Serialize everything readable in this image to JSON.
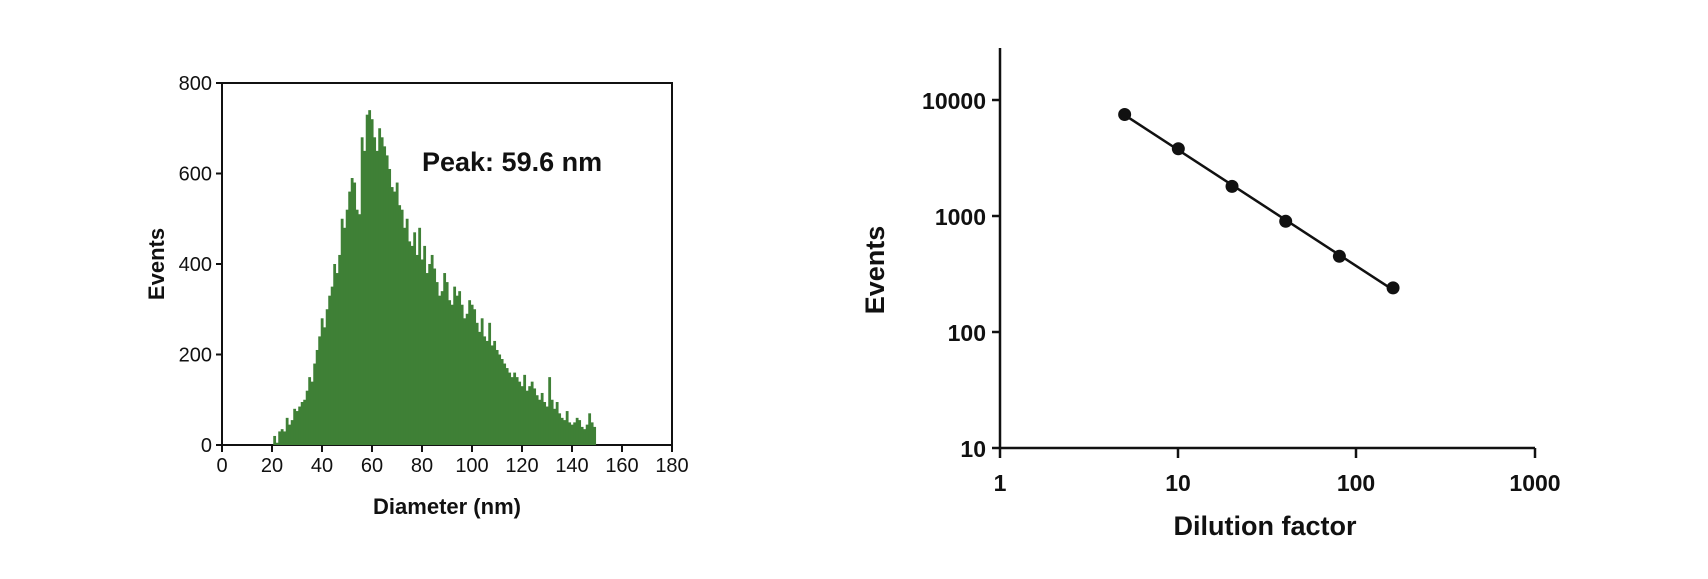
{
  "colors": {
    "bars": "#3f8036",
    "axis": "#111111",
    "points": "#111111"
  },
  "chart_data": [
    {
      "type": "bar",
      "xlabel": "Diameter (nm)",
      "ylabel": "Events",
      "xlim": [
        0,
        180
      ],
      "ylim": [
        0,
        800
      ],
      "xticks": [
        "0",
        "20",
        "40",
        "60",
        "80",
        "100",
        "120",
        "140",
        "160",
        "180"
      ],
      "yticks": [
        "0",
        "200",
        "400",
        "600",
        "800"
      ],
      "bin_width": 1,
      "annotation": "Peak: 59.6 nm",
      "x": [
        21,
        22,
        23,
        24,
        25,
        26,
        27,
        28,
        29,
        30,
        31,
        32,
        33,
        34,
        35,
        36,
        37,
        38,
        39,
        40,
        41,
        42,
        43,
        44,
        45,
        46,
        47,
        48,
        49,
        50,
        51,
        52,
        53,
        54,
        55,
        56,
        57,
        58,
        59,
        60,
        61,
        62,
        63,
        64,
        65,
        66,
        67,
        68,
        69,
        70,
        71,
        72,
        73,
        74,
        75,
        76,
        77,
        78,
        79,
        80,
        81,
        82,
        83,
        84,
        85,
        86,
        87,
        88,
        89,
        90,
        91,
        92,
        93,
        94,
        95,
        96,
        97,
        98,
        99,
        100,
        101,
        102,
        103,
        104,
        105,
        106,
        107,
        108,
        109,
        110,
        111,
        112,
        113,
        114,
        115,
        116,
        117,
        118,
        119,
        120,
        121,
        122,
        123,
        124,
        125,
        126,
        127,
        128,
        129,
        130,
        131,
        132,
        133,
        134,
        135,
        136,
        137,
        138,
        139,
        140,
        141,
        142,
        143,
        144,
        145,
        146,
        147,
        148,
        149
      ],
      "values": [
        20,
        5,
        30,
        35,
        30,
        60,
        45,
        55,
        80,
        75,
        85,
        95,
        100,
        120,
        150,
        140,
        180,
        210,
        240,
        280,
        260,
        300,
        330,
        350,
        400,
        380,
        420,
        500,
        480,
        520,
        560,
        590,
        580,
        520,
        510,
        680,
        650,
        730,
        740,
        720,
        680,
        650,
        700,
        680,
        660,
        640,
        610,
        570,
        560,
        580,
        530,
        520,
        480,
        500,
        450,
        440,
        470,
        420,
        480,
        410,
        440,
        380,
        400,
        420,
        390,
        360,
        330,
        340,
        380,
        360,
        320,
        310,
        350,
        330,
        340,
        310,
        280,
        290,
        320,
        310,
        300,
        270,
        250,
        280,
        240,
        230,
        270,
        220,
        230,
        210,
        200,
        190,
        180,
        170,
        160,
        150,
        160,
        150,
        140,
        130,
        155,
        120,
        130,
        140,
        125,
        110,
        100,
        115,
        95,
        85,
        150,
        100,
        80,
        95,
        70,
        60,
        55,
        75,
        50,
        45,
        50,
        60,
        55,
        40,
        35,
        45,
        70,
        50,
        40
      ]
    },
    {
      "type": "scatter",
      "xlabel": "Dilution factor",
      "ylabel": "Events",
      "xscale": "log",
      "yscale": "log",
      "xlim": [
        1,
        1000
      ],
      "ylim": [
        10,
        30000
      ],
      "xticks": [
        "1",
        "10",
        "100",
        "1000"
      ],
      "yticks": [
        "10",
        "100",
        "1000",
        "10000"
      ],
      "x": [
        5,
        10,
        20,
        40,
        80,
        160
      ],
      "y": [
        7500,
        3800,
        1800,
        900,
        450,
        240
      ],
      "fit_line": true
    }
  ]
}
